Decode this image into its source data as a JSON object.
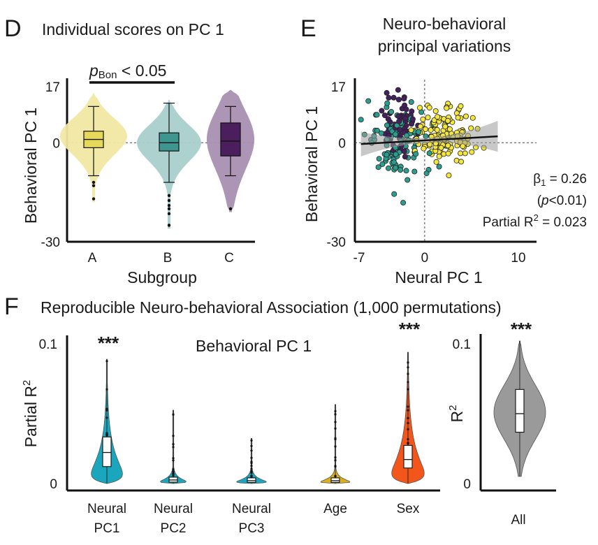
{
  "panels": {
    "d": {
      "letter": "D",
      "title": "Individual scores on PC 1",
      "pvalue_main": "p",
      "pvalue_sub": "Bon",
      "pvalue_rest": " < 0.05"
    },
    "e": {
      "letter": "E",
      "title_line1": "Neuro-behavioral",
      "title_line2": "principal variations"
    },
    "f": {
      "letter": "F",
      "title": "Reproducible Neuro-behavioral Association (1,000 permutations)",
      "inner_title": "Behavioral PC 1"
    }
  },
  "chart_data": [
    {
      "id": "panel-d",
      "type": "violin+box",
      "title": "Individual scores on PC 1",
      "xlabel": "Subgroup",
      "ylabel": "Behavioral PC 1",
      "ylim": [
        -30,
        17
      ],
      "yticks": [
        "17",
        "0",
        "-30"
      ],
      "reference_line": 0,
      "categories": [
        "A",
        "B",
        "C"
      ],
      "colors": [
        "#e8d85a",
        "#3d9690",
        "#4b1f5e"
      ],
      "fill_colors": [
        "#f1e7a2",
        "#a8cfcb",
        "#a98fb2"
      ],
      "series": [
        {
          "name": "A",
          "min": -10,
          "q1": -1.5,
          "median": 1,
          "q3": 3.5,
          "max": 11,
          "violin_min": -18,
          "violin_max": 15,
          "outliers": [
            -12,
            -13,
            -17
          ]
        },
        {
          "name": "B",
          "min": -12,
          "q1": -2.5,
          "median": 0,
          "q3": 3,
          "max": 12,
          "violin_min": -26,
          "violin_max": 13,
          "outliers": [
            -16,
            -17.5,
            -19,
            -20,
            -21.5,
            -25
          ]
        },
        {
          "name": "C",
          "min": -10,
          "q1": -4,
          "median": 0.5,
          "q3": 6,
          "max": 11,
          "violin_min": -21,
          "violin_max": 16,
          "outliers": [
            -20
          ]
        }
      ],
      "annotation": "pBon < 0.05 (A vs B)"
    },
    {
      "id": "panel-e",
      "type": "scatter",
      "title": "Neuro-behavioral principal variations",
      "xlabel": "Neural PC 1",
      "ylabel": "Behavioral PC 1",
      "xlim": [
        -7,
        10
      ],
      "ylim": [
        -30,
        17
      ],
      "xticks": [
        "-7",
        "0",
        "10"
      ],
      "yticks": [
        "17",
        "0",
        "-30"
      ],
      "groups": [
        {
          "name": "A",
          "color": "#f5e63a"
        },
        {
          "name": "B",
          "color": "#2a9d8f"
        },
        {
          "name": "C",
          "color": "#45205f"
        }
      ],
      "fit": {
        "slope": 0.16,
        "intercept": 0.7
      },
      "stats": {
        "beta_label": "β",
        "beta_sub": "1",
        "beta_value": " = 0.26",
        "p_open": "(",
        "p_letter": "p",
        "p_rest": "<0.01)",
        "r2_label": "Partial R",
        "r2_sup": "2",
        "r2_value": " = 0.023"
      }
    },
    {
      "id": "panel-f",
      "type": "violin+box",
      "title": "Behavioral PC 1",
      "ylabel": "Partial R²",
      "ylabel_main": "Partial R",
      "ylabel_sup": "2",
      "ylim": [
        0,
        0.1
      ],
      "yticks": [
        "0.1",
        "0"
      ],
      "categories": [
        {
          "line1": "Neural",
          "line2": "PC1"
        },
        {
          "line1": "Neural",
          "line2": "PC2"
        },
        {
          "line1": "Neural",
          "line2": "PC3"
        },
        {
          "line1": "Age",
          "line2": ""
        },
        {
          "line1": "Sex",
          "line2": ""
        }
      ],
      "colors": [
        "#1aa7bd",
        "#1aa7bd",
        "#1aa7bd",
        "#dfae1e",
        "#f3561a"
      ],
      "series": [
        {
          "name": "Neural PC1",
          "q1": 0.012,
          "median": 0.022,
          "q3": 0.033,
          "min": 0.0,
          "max": 0.088,
          "stars": "***"
        },
        {
          "name": "Neural PC2",
          "q1": 0.001,
          "median": 0.0025,
          "q3": 0.0045,
          "min": 0.0,
          "max": 0.052,
          "stars": ""
        },
        {
          "name": "Neural PC3",
          "q1": 0.0008,
          "median": 0.002,
          "q3": 0.004,
          "min": 0.0,
          "max": 0.032,
          "stars": ""
        },
        {
          "name": "Age",
          "q1": 0.0008,
          "median": 0.002,
          "q3": 0.004,
          "min": 0.0,
          "max": 0.056,
          "stars": ""
        },
        {
          "name": "Sex",
          "q1": 0.011,
          "median": 0.017,
          "q3": 0.027,
          "min": 0.0,
          "max": 0.093,
          "stars": "***"
        }
      ]
    },
    {
      "id": "panel-f-all",
      "type": "violin+box",
      "ylabel": "R²",
      "ylabel_main": "R",
      "ylabel_sup": "2",
      "ylim": [
        0,
        0.1
      ],
      "yticks": [
        "0.1",
        "0"
      ],
      "categories": [
        "All"
      ],
      "colors": [
        "#9a9a9a"
      ],
      "series": [
        {
          "name": "All",
          "q1": 0.036,
          "median": 0.049,
          "q3": 0.066,
          "min": 0.005,
          "max": 0.1,
          "stars": "***"
        }
      ]
    }
  ]
}
